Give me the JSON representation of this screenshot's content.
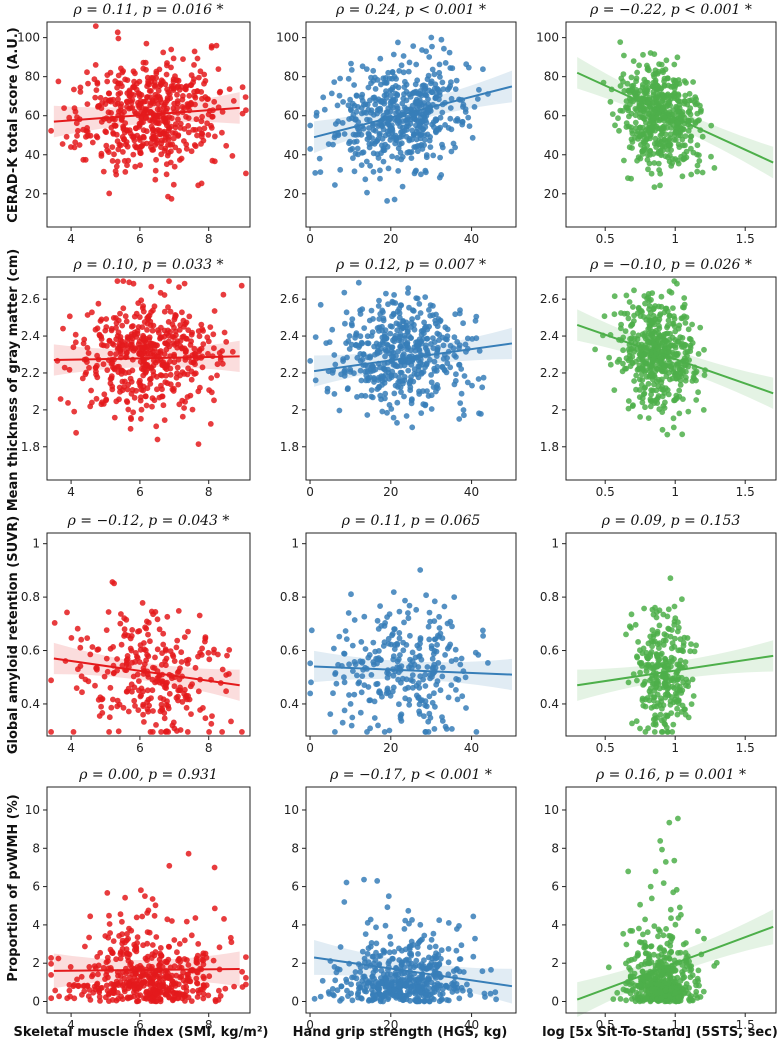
{
  "figure": {
    "row_labels": [
      "CERAD-K total score (A.U.)",
      "Mean thickness of gray matter (cm)",
      "Global amyloid retention (SUVR)",
      "Proportion of pvWMH (%)"
    ],
    "col_labels": [
      "Skeletal muscle index (SMI, kg/m²)",
      "Hand grip strength (HGS, kg)",
      "log [5x Sit-To-Stand] (5STS, sec)"
    ],
    "colors": [
      "#e41a1c",
      "#377eb8",
      "#4daf4a"
    ]
  },
  "chart_data": [
    {
      "type": "scatter",
      "row": 0,
      "col": 0,
      "title": "ρ = 0.11, p = 0.016 *",
      "xlim": [
        3.3,
        9.2
      ],
      "ylim": [
        3,
        108
      ],
      "xticks": [
        4,
        6,
        8
      ],
      "yticks": [
        20,
        40,
        60,
        80,
        100
      ],
      "x_center": 6.3,
      "x_sd": 1.05,
      "y_center": 60,
      "y_sd": 14,
      "n": 520,
      "fit": {
        "x0": 3.5,
        "y0": 57,
        "x1": 8.9,
        "y1": 64
      },
      "seed": 11
    },
    {
      "type": "scatter",
      "row": 0,
      "col": 1,
      "title": "ρ = 0.24, p < 0.001 *",
      "xlim": [
        -1,
        51
      ],
      "ylim": [
        3,
        108
      ],
      "xticks": [
        0,
        20,
        40
      ],
      "yticks": [
        20,
        40,
        60,
        80,
        100
      ],
      "x_center": 23,
      "x_sd": 8,
      "y_center": 60,
      "y_sd": 14,
      "n": 520,
      "fit": {
        "x0": 1,
        "y0": 49,
        "x1": 50,
        "y1": 75
      },
      "seed": 12
    },
    {
      "type": "scatter",
      "row": 0,
      "col": 2,
      "title": "ρ = −0.22, p < 0.001 *",
      "xlim": [
        0.22,
        1.72
      ],
      "ylim": [
        3,
        108
      ],
      "xticks": [
        0.5,
        1.0,
        1.5
      ],
      "yticks": [
        20,
        40,
        60,
        80,
        100
      ],
      "x_center": 0.88,
      "x_sd": 0.14,
      "y_center": 60,
      "y_sd": 14,
      "n": 520,
      "fit": {
        "x0": 0.3,
        "y0": 82,
        "x1": 1.7,
        "y1": 36
      },
      "seed": 13
    },
    {
      "type": "scatter",
      "row": 1,
      "col": 0,
      "title": "ρ = 0.10, p = 0.033 *",
      "xlim": [
        3.3,
        9.2
      ],
      "ylim": [
        1.62,
        2.72
      ],
      "xticks": [
        4,
        6,
        8
      ],
      "yticks": [
        1.8,
        2.0,
        2.2,
        2.4,
        2.6
      ],
      "x_center": 6.3,
      "x_sd": 1.05,
      "y_center": 2.3,
      "y_sd": 0.15,
      "n": 480,
      "fit": {
        "x0": 3.5,
        "y0": 2.27,
        "x1": 8.9,
        "y1": 2.29
      },
      "seed": 21
    },
    {
      "type": "scatter",
      "row": 1,
      "col": 1,
      "title": "ρ = 0.12, p = 0.007 *",
      "xlim": [
        -1,
        51
      ],
      "ylim": [
        1.62,
        2.72
      ],
      "xticks": [
        0,
        20,
        40
      ],
      "yticks": [
        1.8,
        2.0,
        2.2,
        2.4,
        2.6
      ],
      "x_center": 23,
      "x_sd": 8,
      "y_center": 2.3,
      "y_sd": 0.15,
      "n": 480,
      "fit": {
        "x0": 1,
        "y0": 2.21,
        "x1": 50,
        "y1": 2.36
      },
      "seed": 22
    },
    {
      "type": "scatter",
      "row": 1,
      "col": 2,
      "title": "ρ = −0.10, p = 0.026 *",
      "xlim": [
        0.22,
        1.72
      ],
      "ylim": [
        1.62,
        2.72
      ],
      "xticks": [
        0.5,
        1.0,
        1.5
      ],
      "yticks": [
        1.8,
        2.0,
        2.2,
        2.4,
        2.6
      ],
      "x_center": 0.88,
      "x_sd": 0.14,
      "y_center": 2.3,
      "y_sd": 0.15,
      "n": 480,
      "fit": {
        "x0": 0.3,
        "y0": 2.46,
        "x1": 1.7,
        "y1": 2.09
      },
      "seed": 23
    },
    {
      "type": "scatter",
      "row": 2,
      "col": 0,
      "title": "ρ = −0.12, p = 0.043 *",
      "xlim": [
        3.3,
        9.2
      ],
      "ylim": [
        0.28,
        1.04
      ],
      "xticks": [
        4,
        6,
        8
      ],
      "yticks": [
        0.4,
        0.6,
        0.8,
        1.0
      ],
      "x_center": 6.3,
      "x_sd": 1.05,
      "y_center": 0.52,
      "y_sd": 0.13,
      "n": 280,
      "fit": {
        "x0": 3.5,
        "y0": 0.57,
        "x1": 8.9,
        "y1": 0.47
      },
      "seed": 31
    },
    {
      "type": "scatter",
      "row": 2,
      "col": 1,
      "title": "ρ = 0.11, p = 0.065",
      "xlim": [
        -1,
        51
      ],
      "ylim": [
        0.28,
        1.04
      ],
      "xticks": [
        0,
        20,
        40
      ],
      "yticks": [
        0.4,
        0.6,
        0.8,
        1.0
      ],
      "x_center": 23,
      "x_sd": 8,
      "y_center": 0.52,
      "y_sd": 0.13,
      "n": 280,
      "fit": {
        "x0": 1,
        "y0": 0.54,
        "x1": 50,
        "y1": 0.51
      },
      "seed": 32
    },
    {
      "type": "scatter",
      "row": 2,
      "col": 2,
      "title": "ρ = 0.09, p = 0.153",
      "xlim": [
        0.22,
        1.72
      ],
      "ylim": [
        0.28,
        1.04
      ],
      "xticks": [
        0.5,
        1.0,
        1.5
      ],
      "yticks": [
        0.4,
        0.6,
        0.8,
        1.0
      ],
      "x_center": 0.9,
      "x_sd": 0.1,
      "y_center": 0.52,
      "y_sd": 0.13,
      "n": 280,
      "fit": {
        "x0": 0.3,
        "y0": 0.47,
        "x1": 1.7,
        "y1": 0.58
      },
      "seed": 33
    },
    {
      "type": "scatter",
      "row": 3,
      "col": 0,
      "title": "ρ = 0.00, p = 0.931",
      "xlim": [
        3.3,
        9.2
      ],
      "ylim": [
        -0.6,
        11.2
      ],
      "xticks": [
        4,
        6,
        8
      ],
      "yticks": [
        0,
        2,
        4,
        6,
        8,
        10
      ],
      "x_center": 6.3,
      "x_sd": 1.05,
      "y_center": 1.3,
      "y_sd": 1.6,
      "n": 480,
      "fit": {
        "x0": 3.5,
        "y0": 1.6,
        "x1": 8.9,
        "y1": 1.7
      },
      "seed": 41,
      "skew": true
    },
    {
      "type": "scatter",
      "row": 3,
      "col": 1,
      "title": "ρ = −0.17, p < 0.001 *",
      "xlim": [
        -1,
        51
      ],
      "ylim": [
        -0.6,
        11.2
      ],
      "xticks": [
        0,
        20,
        40
      ],
      "yticks": [
        0,
        2,
        4,
        6,
        8,
        10
      ],
      "x_center": 23,
      "x_sd": 8,
      "y_center": 1.3,
      "y_sd": 1.6,
      "n": 480,
      "fit": {
        "x0": 1,
        "y0": 2.3,
        "x1": 50,
        "y1": 0.8
      },
      "seed": 42,
      "skew": true
    },
    {
      "type": "scatter",
      "row": 3,
      "col": 2,
      "title": "ρ = 0.16, p = 0.001 *",
      "xlim": [
        0.22,
        1.72
      ],
      "ylim": [
        -0.6,
        11.2
      ],
      "xticks": [
        0.5,
        1.0,
        1.5
      ],
      "yticks": [
        0,
        2,
        4,
        6,
        8,
        10
      ],
      "x_center": 0.9,
      "x_sd": 0.12,
      "y_center": 1.3,
      "y_sd": 1.6,
      "n": 480,
      "fit": {
        "x0": 0.3,
        "y0": 0.1,
        "x1": 1.7,
        "y1": 3.9
      },
      "seed": 43,
      "skew": true
    }
  ]
}
